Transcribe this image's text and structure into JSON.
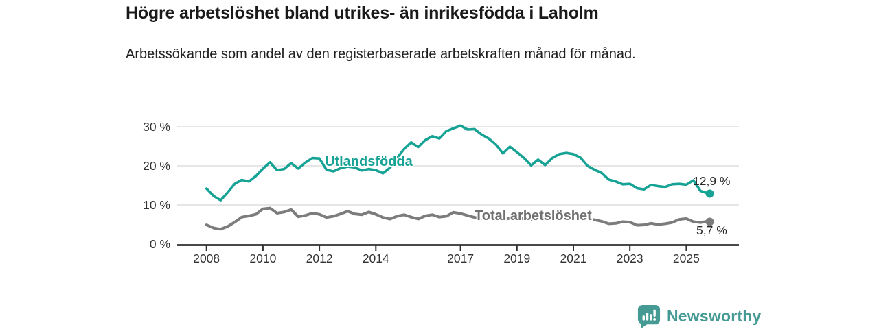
{
  "title": "Högre arbetslöshet bland utrikes- än inrikesfödda i Laholm",
  "subtitle": "Arbetssökande som andel av den registerbaserade arbetskraften månad för månad.",
  "branding": {
    "logo_text": "Newsworthy",
    "logo_icon": "bar-chart-speech-bubble-icon"
  },
  "colors": {
    "foreign_born_line": "#16a294",
    "total_line": "#7c7c7c",
    "total_label": "#717171",
    "grid": "#d8d8d8",
    "axis": "#2f2f2f",
    "axis_text": "#333333",
    "value_label": "#2b2b2b",
    "brand": "#459a94"
  },
  "chart_data": {
    "type": "line",
    "title": "Högre arbetslöshet bland utrikes- än inrikesfödda i Laholm",
    "subtitle": "Arbetssökande som andel av den registerbaserade arbetskraften månad för månad.",
    "xlabel": "",
    "ylabel": "",
    "grid": "horizontal",
    "legend": "inline-labels",
    "x_axis": {
      "ticks": [
        2008,
        2010,
        2012,
        2014,
        2017,
        2019,
        2021,
        2023,
        2025
      ],
      "range": [
        2008,
        2026
      ]
    },
    "y_axis": {
      "tick_labels": [
        "0 %",
        "10 %",
        "20 %",
        "30 %"
      ],
      "tick_values": [
        0,
        10,
        20,
        30
      ],
      "range": [
        0,
        32
      ]
    },
    "x": [
      2008,
      2008.25,
      2008.5,
      2008.75,
      2009,
      2009.25,
      2009.5,
      2009.75,
      2010,
      2010.25,
      2010.5,
      2010.75,
      2011,
      2011.25,
      2011.5,
      2011.75,
      2012,
      2012.25,
      2012.5,
      2012.75,
      2013,
      2013.25,
      2013.5,
      2013.75,
      2014,
      2014.25,
      2014.5,
      2014.75,
      2015,
      2015.25,
      2015.5,
      2015.75,
      2016,
      2016.25,
      2016.5,
      2016.75,
      2017,
      2017.25,
      2017.5,
      2017.75,
      2018,
      2018.25,
      2018.5,
      2018.75,
      2019,
      2019.25,
      2019.5,
      2019.75,
      2020,
      2020.25,
      2020.5,
      2020.75,
      2021,
      2021.25,
      2021.5,
      2021.75,
      2022,
      2022.25,
      2022.5,
      2022.75,
      2023,
      2023.25,
      2023.5,
      2023.75,
      2024,
      2024.25,
      2024.5,
      2024.75,
      2025,
      2025.25,
      2025.5,
      2025.75,
      2025.83
    ],
    "series": [
      {
        "name": "Utlandsfödda",
        "color": "#16a294",
        "end_label": "12,9 %",
        "end_value": 12.9,
        "values": [
          14.2,
          12.3,
          11.2,
          13.2,
          15.4,
          16.4,
          16.0,
          17.4,
          19.3,
          20.9,
          18.9,
          19.2,
          20.7,
          19.3,
          20.8,
          22.0,
          21.9,
          19.0,
          18.6,
          19.4,
          19.8,
          19.6,
          18.8,
          19.2,
          18.9,
          18.1,
          19.5,
          22.0,
          24.3,
          26.0,
          24.8,
          26.6,
          27.6,
          27.0,
          28.9,
          29.6,
          30.3,
          29.3,
          29.4,
          28.0,
          27.0,
          25.5,
          23.2,
          24.9,
          23.5,
          22.0,
          20.1,
          21.6,
          20.2,
          22.0,
          23.0,
          23.3,
          23.0,
          22.1,
          20.0,
          19.0,
          18.2,
          16.5,
          16.0,
          15.3,
          15.4,
          14.3,
          14.0,
          15.1,
          14.8,
          14.6,
          15.3,
          15.4,
          15.2,
          16.3,
          13.6,
          13.0,
          12.9
        ]
      },
      {
        "name": "Total arbetslöshet",
        "color": "#7c7c7c",
        "end_label": "5,7 %",
        "end_value": 5.7,
        "values": [
          4.9,
          4.1,
          3.8,
          4.5,
          5.6,
          6.9,
          7.2,
          7.6,
          9.0,
          9.2,
          7.9,
          8.2,
          8.8,
          7.0,
          7.3,
          7.9,
          7.6,
          6.8,
          7.1,
          7.7,
          8.4,
          7.7,
          7.5,
          8.2,
          7.6,
          6.8,
          6.4,
          7.1,
          7.5,
          6.9,
          6.4,
          7.2,
          7.5,
          6.9,
          7.1,
          8.1,
          7.8,
          7.3,
          6.8,
          6.6,
          6.9,
          6.5,
          6.3,
          6.6,
          6.8,
          6.4,
          6.3,
          6.6,
          6.9,
          7.8,
          8.0,
          7.8,
          7.6,
          7.2,
          6.6,
          6.2,
          5.8,
          5.2,
          5.3,
          5.7,
          5.6,
          4.8,
          4.9,
          5.3,
          5.0,
          5.2,
          5.5,
          6.3,
          6.5,
          5.7,
          5.5,
          5.8,
          5.7
        ]
      }
    ],
    "annotations": [
      {
        "text": "Utlandsfödda",
        "series": "Utlandsfödda",
        "x": 2013.9,
        "y": 20.7
      },
      {
        "text": "Total arbetslöshet",
        "series": "Total arbetslöshet",
        "x": 2019.9,
        "y": 6.6
      }
    ]
  }
}
